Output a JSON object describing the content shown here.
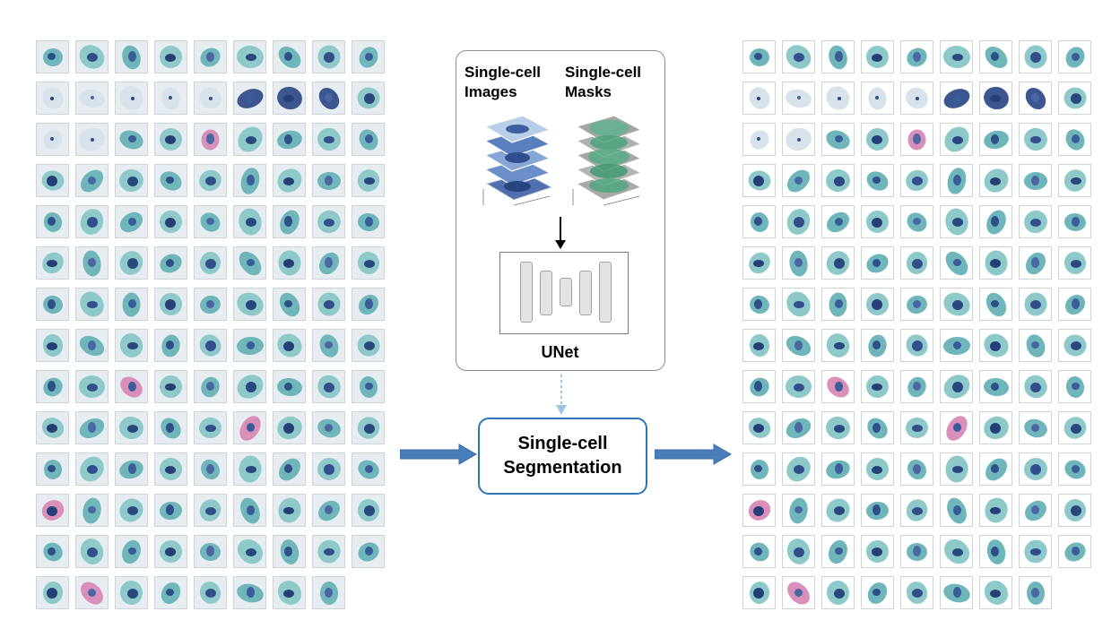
{
  "headers": {
    "images": "Single-cell\nImages",
    "masks": "Single-cell\nMasks"
  },
  "model_label": "UNet",
  "process_label": "Single-cell\nSegmentation",
  "grid": {
    "rows": 14,
    "columns": 9,
    "cells_in_last_row": 8
  },
  "colors": {
    "arrow_blue": "#4a7ebb",
    "process_border": "#2e75b6",
    "dotted_arrow": "#9dc3e6",
    "cytoplasm_teal": "#6fb6bb",
    "cytoplasm_pink": "#d98fb9",
    "nucleus_blue": "#2e4f8a"
  }
}
